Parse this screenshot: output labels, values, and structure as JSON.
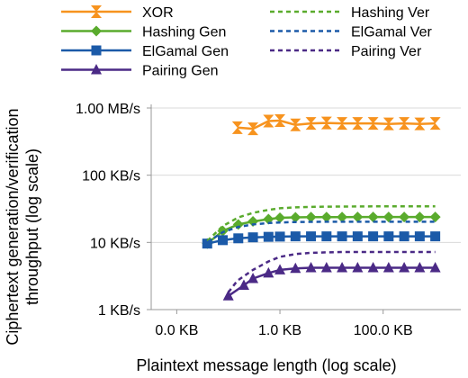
{
  "chart_data": {
    "type": "line",
    "xlabel": "Plaintext message length (log scale)",
    "ylabel": [
      "Ciphertext generation/verification",
      "throughput (log scale)"
    ],
    "x_scale": "log",
    "y_scale": "log",
    "x_unit": "KB",
    "y_unit": "MB/s",
    "xlim": [
      0.0032,
      3200
    ],
    "ylim": [
      0.001,
      1.0
    ],
    "x_ticks": [
      {
        "value": 0.01,
        "label": "0.0 KB"
      },
      {
        "value": 1,
        "label": "1.0 KB"
      },
      {
        "value": 100,
        "label": "100.0 KB"
      }
    ],
    "y_ticks": [
      {
        "value": 0.001,
        "label": "1 KB/s"
      },
      {
        "value": 0.01,
        "label": "10 KB/s"
      },
      {
        "value": 0.1,
        "label": "100 KB/s"
      },
      {
        "value": 1.0,
        "label": "1.00 MB/s"
      }
    ],
    "grid": "horizontal",
    "legend_position": "top",
    "series": [
      {
        "name": "XOR",
        "color": "#f7931e",
        "style": "solid",
        "marker": "hourglass",
        "points": [
          [
            0.15,
            0.51
          ],
          [
            0.3,
            0.49
          ],
          [
            0.6,
            0.64
          ],
          [
            1.0,
            0.65
          ],
          [
            2,
            0.56
          ],
          [
            4,
            0.59
          ],
          [
            8,
            0.6
          ],
          [
            16,
            0.59
          ],
          [
            32,
            0.59
          ],
          [
            64,
            0.59
          ],
          [
            128,
            0.58
          ],
          [
            256,
            0.59
          ],
          [
            512,
            0.58
          ],
          [
            1024,
            0.59
          ]
        ]
      },
      {
        "name": "Hashing Gen",
        "color": "#5aab2d",
        "style": "solid",
        "marker": "diamond",
        "points": [
          [
            0.039,
            0.0096
          ],
          [
            0.078,
            0.0148
          ],
          [
            0.156,
            0.0185
          ],
          [
            0.3,
            0.0205
          ],
          [
            0.6,
            0.0222
          ],
          [
            1,
            0.0232
          ],
          [
            2,
            0.0236
          ],
          [
            4,
            0.0238
          ],
          [
            8,
            0.0238
          ],
          [
            16,
            0.0238
          ],
          [
            32,
            0.0239
          ],
          [
            64,
            0.0239
          ],
          [
            128,
            0.0239
          ],
          [
            256,
            0.0239
          ],
          [
            512,
            0.0239
          ],
          [
            1024,
            0.0239
          ]
        ]
      },
      {
        "name": "ElGamal Gen",
        "color": "#1b5aa8",
        "style": "solid",
        "marker": "square",
        "points": [
          [
            0.039,
            0.0096
          ],
          [
            0.078,
            0.0108
          ],
          [
            0.156,
            0.0115
          ],
          [
            0.3,
            0.0119
          ],
          [
            0.6,
            0.0121
          ],
          [
            1,
            0.0122
          ],
          [
            2,
            0.0123
          ],
          [
            4,
            0.0123
          ],
          [
            8,
            0.0123
          ],
          [
            16,
            0.0123
          ],
          [
            32,
            0.0123
          ],
          [
            64,
            0.0123
          ],
          [
            128,
            0.0123
          ],
          [
            256,
            0.0123
          ],
          [
            512,
            0.0123
          ],
          [
            1024,
            0.0123
          ]
        ]
      },
      {
        "name": "Pairing Gen",
        "color": "#4b2a86",
        "style": "solid",
        "marker": "triangle",
        "points": [
          [
            0.1,
            0.0016
          ],
          [
            0.2,
            0.0023
          ],
          [
            0.3,
            0.0029
          ],
          [
            0.6,
            0.0035
          ],
          [
            1,
            0.0039
          ],
          [
            2,
            0.0041
          ],
          [
            4,
            0.0042
          ],
          [
            8,
            0.0042
          ],
          [
            16,
            0.0042
          ],
          [
            32,
            0.0042
          ],
          [
            64,
            0.0042
          ],
          [
            128,
            0.0042
          ],
          [
            256,
            0.0042
          ],
          [
            512,
            0.0042
          ],
          [
            1024,
            0.0042
          ]
        ]
      },
      {
        "name": "Hashing Ver",
        "color": "#5aab2d",
        "style": "dashed",
        "marker": "none",
        "points": [
          [
            0.039,
            0.0105
          ],
          [
            0.078,
            0.0175
          ],
          [
            0.156,
            0.0235
          ],
          [
            0.3,
            0.0275
          ],
          [
            0.6,
            0.0305
          ],
          [
            1,
            0.0322
          ],
          [
            2,
            0.0332
          ],
          [
            4,
            0.0337
          ],
          [
            8,
            0.034
          ],
          [
            16,
            0.0342
          ],
          [
            32,
            0.0343
          ],
          [
            64,
            0.0344
          ],
          [
            128,
            0.0344
          ],
          [
            256,
            0.0344
          ],
          [
            512,
            0.0344
          ],
          [
            1024,
            0.0344
          ]
        ]
      },
      {
        "name": "ElGamal Ver",
        "color": "#1b5aa8",
        "style": "dashed",
        "marker": "none",
        "points": [
          [
            0.039,
            0.01
          ],
          [
            0.078,
            0.0142
          ],
          [
            0.156,
            0.017
          ],
          [
            0.3,
            0.0185
          ],
          [
            0.6,
            0.0194
          ],
          [
            1,
            0.0198
          ],
          [
            2,
            0.0201
          ],
          [
            4,
            0.0202
          ],
          [
            8,
            0.0203
          ],
          [
            16,
            0.0203
          ],
          [
            32,
            0.0203
          ],
          [
            64,
            0.0203
          ],
          [
            128,
            0.0203
          ],
          [
            256,
            0.0203
          ],
          [
            512,
            0.0203
          ],
          [
            1024,
            0.0203
          ]
        ]
      },
      {
        "name": "Pairing Ver",
        "color": "#4b2a86",
        "style": "dashed",
        "marker": "none",
        "points": [
          [
            0.1,
            0.0018
          ],
          [
            0.15,
            0.0027
          ],
          [
            0.3,
            0.0039
          ],
          [
            0.6,
            0.0052
          ],
          [
            1,
            0.0061
          ],
          [
            2,
            0.0067
          ],
          [
            4,
            0.007
          ],
          [
            8,
            0.0071
          ],
          [
            16,
            0.0072
          ],
          [
            32,
            0.0072
          ],
          [
            64,
            0.0072
          ],
          [
            128,
            0.0072
          ],
          [
            256,
            0.0072
          ],
          [
            512,
            0.0072
          ],
          [
            1024,
            0.0072
          ]
        ]
      }
    ]
  }
}
